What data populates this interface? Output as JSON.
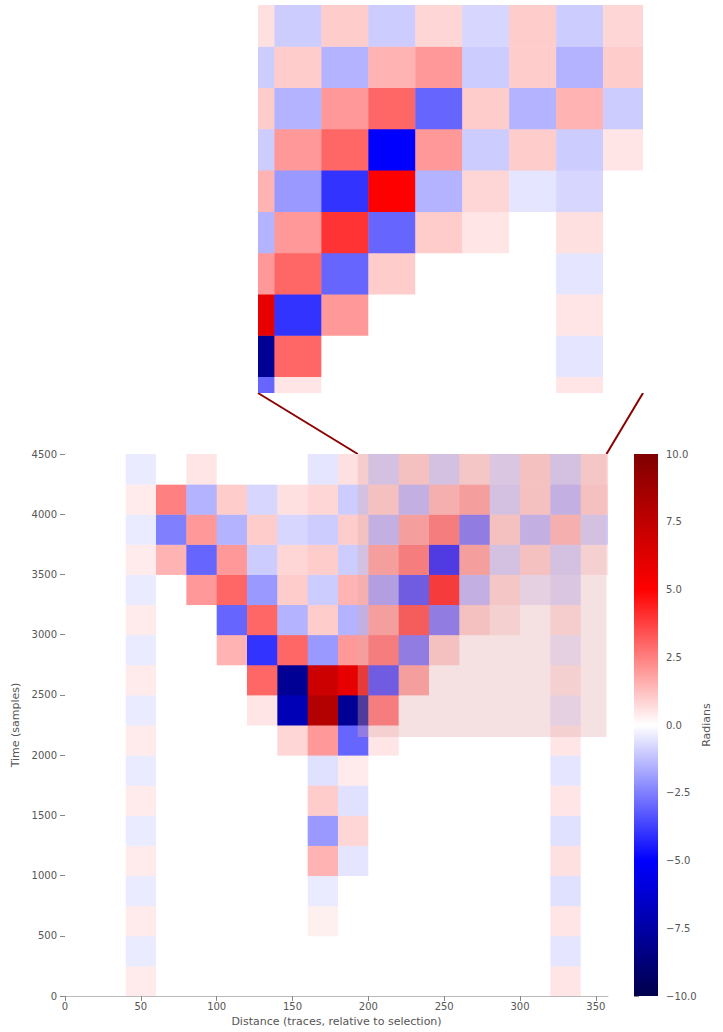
{
  "chart_data": {
    "type": "heatmap",
    "x_label": "Distance (traces, relative to selection)",
    "y_label": "Time (samples)",
    "xlim": [
      0,
      358
    ],
    "xticks": [
      0,
      50,
      100,
      150,
      200,
      250,
      300,
      350
    ],
    "ylim": [
      0,
      4500
    ],
    "yticks": [
      0,
      500,
      1000,
      1500,
      2000,
      2500,
      3000,
      3500,
      4000,
      4500
    ],
    "grid": false,
    "x_edges": [
      0,
      20,
      40,
      60,
      80,
      100,
      120,
      140,
      160,
      180,
      200,
      220,
      240,
      260,
      280,
      300,
      320,
      340,
      360
    ],
    "y_edges": [
      0,
      250,
      500,
      750,
      1000,
      1250,
      1500,
      1750,
      2000,
      2250,
      2500,
      2750,
      3000,
      3250,
      3500,
      3750,
      4000,
      4250,
      4500
    ],
    "values": [
      [
        0,
        0,
        0.4,
        0,
        0,
        0,
        0,
        0,
        0,
        0,
        0,
        0,
        0,
        0,
        0,
        0,
        0.5,
        0
      ],
      [
        0,
        0,
        -0.4,
        0,
        0,
        0,
        0,
        0,
        0,
        0,
        0,
        0,
        0,
        0,
        0,
        0,
        -0.5,
        0
      ],
      [
        0,
        0,
        0.4,
        0,
        0,
        0,
        0,
        0,
        0.3,
        0,
        0,
        0,
        0,
        0,
        0,
        0,
        0.5,
        0
      ],
      [
        0,
        0,
        -0.4,
        0,
        0,
        0,
        0,
        0,
        -0.4,
        0,
        0,
        0,
        0,
        0,
        0,
        0,
        -0.6,
        0
      ],
      [
        0,
        0,
        0.4,
        0,
        0,
        0,
        0,
        0,
        1.5,
        -0.5,
        0,
        0,
        0,
        0,
        0,
        0,
        0.6,
        0
      ],
      [
        0,
        0,
        -0.4,
        0,
        0,
        0,
        0,
        0,
        -2,
        0.8,
        0,
        0,
        0,
        0,
        0,
        0,
        -0.6,
        0
      ],
      [
        0,
        0,
        0.4,
        0,
        0,
        0,
        0,
        0,
        1,
        -0.6,
        0,
        0,
        0,
        0,
        0,
        0,
        0.5,
        0
      ],
      [
        0,
        0,
        -0.4,
        0,
        0,
        0,
        0,
        0,
        -0.6,
        0.4,
        0,
        0,
        0,
        0,
        0,
        0,
        -0.5,
        0
      ],
      [
        0,
        0,
        0.4,
        0,
        0,
        0,
        0,
        0.8,
        2,
        -3,
        0.5,
        0,
        0,
        0,
        0,
        0,
        0.5,
        0
      ],
      [
        0,
        0,
        -0.4,
        0,
        0,
        0,
        0.5,
        -7,
        8,
        -8,
        3,
        0,
        0,
        0,
        0,
        0,
        -0.5,
        0
      ],
      [
        0,
        0,
        0.4,
        0,
        0,
        0,
        3,
        -8,
        7,
        6,
        -4,
        2,
        0,
        0,
        0,
        0,
        0.5,
        0
      ],
      [
        0,
        0,
        -0.4,
        0,
        0,
        1.5,
        -4,
        3,
        -2,
        2,
        3,
        -3,
        1,
        0,
        0,
        0,
        -0.5,
        0
      ],
      [
        0,
        0,
        0.4,
        0,
        0,
        -3,
        3,
        -1.5,
        1,
        -1.5,
        2,
        4,
        -3,
        1,
        0.5,
        0,
        0.6,
        0
      ],
      [
        0,
        0,
        -0.4,
        0,
        2,
        3,
        -2,
        1,
        -1,
        1.5,
        -2,
        -4,
        5,
        -1.5,
        0.8,
        -0.5,
        -0.8,
        0
      ],
      [
        0,
        0,
        0.4,
        1.5,
        -3,
        2,
        -1,
        0.8,
        1,
        -1,
        2,
        3,
        -5,
        2,
        -1,
        1,
        -1,
        0.5
      ],
      [
        0,
        0,
        -0.4,
        -2.5,
        2,
        -1.5,
        1,
        -0.8,
        -1,
        1,
        -1.5,
        2,
        3,
        -3,
        1,
        -1.5,
        1.5,
        -1
      ],
      [
        0,
        0,
        0.4,
        2.5,
        -1.5,
        1,
        -0.8,
        0.6,
        0.8,
        -1,
        1,
        -1.5,
        1.5,
        2,
        -1,
        1,
        -1.5,
        1
      ],
      [
        0,
        0,
        -0.4,
        0,
        0.5,
        0,
        0,
        0,
        -0.5,
        0.6,
        -1,
        1,
        -1,
        0.8,
        -0.8,
        1,
        -1,
        0.8
      ]
    ],
    "colorbar": {
      "label": "Radians",
      "range": [
        -10,
        10
      ],
      "ticks": [
        {
          "value": -10,
          "label": "−10.0"
        },
        {
          "value": -7.5,
          "label": "−7.5"
        },
        {
          "value": -5,
          "label": "−5.0"
        },
        {
          "value": -2.5,
          "label": "−2.5"
        },
        {
          "value": 0,
          "label": "0.0"
        },
        {
          "value": 2.5,
          "label": "2.5"
        },
        {
          "value": 5,
          "label": "5.0"
        },
        {
          "value": 7.5,
          "label": "7.5"
        },
        {
          "value": 10,
          "label": "10.0"
        }
      ]
    },
    "inset": {
      "xlim": [
        193,
        357
      ],
      "ylim": [
        2150,
        4500
      ],
      "tick_labels": false
    }
  }
}
